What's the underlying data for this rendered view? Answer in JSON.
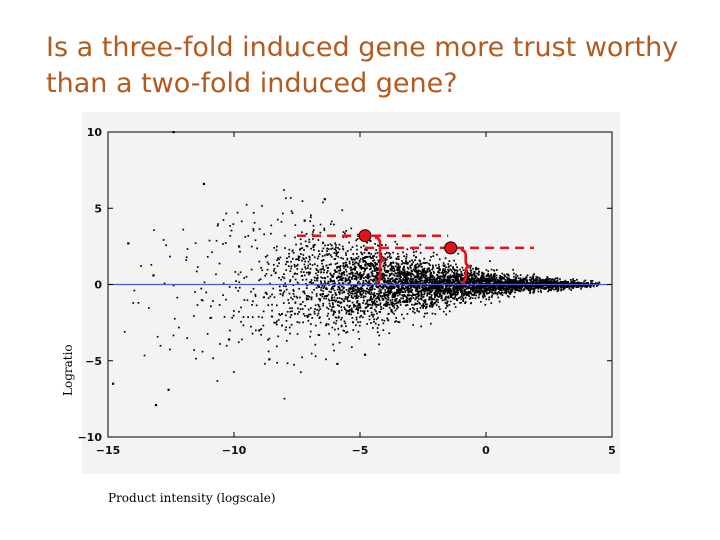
{
  "slide": {
    "title": "Is a three-fold induced gene more trust worthy than a two-fold induced gene?"
  },
  "colors": {
    "title": "#b35a1f",
    "points": "#000000",
    "zero_line": "#4a5fd6",
    "annotation": "#e0151b",
    "panel_background": "#f3f3f3"
  },
  "chart_data": {
    "type": "scatter",
    "title": "",
    "xlabel": "Product intensity (logscale)",
    "ylabel": "Logratio",
    "xlim": [
      -15,
      5
    ],
    "ylim": [
      -10,
      10
    ],
    "xticks": [
      {
        "value": -15,
        "label": "−15"
      },
      {
        "value": -10,
        "label": "−10"
      },
      {
        "value": -5,
        "label": "−5"
      },
      {
        "value": 0,
        "label": "0"
      },
      {
        "value": 5,
        "label": "5"
      }
    ],
    "yticks": [
      {
        "value": 10,
        "label": "10"
      },
      {
        "value": 5,
        "label": "5"
      },
      {
        "value": 0,
        "label": "0"
      },
      {
        "value": -5,
        "label": "−5"
      },
      {
        "value": -10,
        "label": "−10"
      }
    ],
    "grid": false,
    "reference_line": {
      "y": 0,
      "color": "#4a5fd6"
    },
    "description": "MA-style scatter of several thousand genes; spread of log ratio shrinks as intensity increases (funnel shape).",
    "spread_envelope": [
      {
        "x": -14.5,
        "sd": 3.0
      },
      {
        "x": -12.0,
        "sd": 2.8
      },
      {
        "x": -9.0,
        "sd": 2.4
      },
      {
        "x": -7.0,
        "sd": 1.9
      },
      {
        "x": -5.0,
        "sd": 1.35
      },
      {
        "x": -3.0,
        "sd": 0.9
      },
      {
        "x": -1.0,
        "sd": 0.55
      },
      {
        "x": 1.0,
        "sd": 0.3
      },
      {
        "x": 3.0,
        "sd": 0.15
      },
      {
        "x": 4.4,
        "sd": 0.08
      }
    ],
    "density_envelope": [
      {
        "x": -14.5,
        "count": 4
      },
      {
        "x": -12.0,
        "count": 15
      },
      {
        "x": -9.0,
        "count": 60
      },
      {
        "x": -7.0,
        "count": 220
      },
      {
        "x": -5.0,
        "count": 480
      },
      {
        "x": -3.0,
        "count": 560
      },
      {
        "x": -1.0,
        "count": 520
      },
      {
        "x": 1.0,
        "count": 420
      },
      {
        "x": 3.0,
        "count": 260
      },
      {
        "x": 4.4,
        "count": 60
      }
    ],
    "outliers": [
      {
        "x": -12.4,
        "y": 10.0
      },
      {
        "x": -11.2,
        "y": 6.6
      },
      {
        "x": -14.2,
        "y": 2.7
      },
      {
        "x": -14.8,
        "y": -6.5
      },
      {
        "x": -12.6,
        "y": -6.9
      },
      {
        "x": -13.1,
        "y": -7.9
      },
      {
        "x": -13.2,
        "y": 0.6
      },
      {
        "x": -9.8,
        "y": 2.5
      },
      {
        "x": -10.2,
        "y": -3.6
      },
      {
        "x": -8.6,
        "y": -4.9
      },
      {
        "x": -9.0,
        "y": -3.0
      },
      {
        "x": -6.4,
        "y": 5.6
      },
      {
        "x": -7.2,
        "y": 4.2
      },
      {
        "x": -5.9,
        "y": -5.2
      },
      {
        "x": -4.8,
        "y": -4.6
      }
    ],
    "highlighted_genes": [
      {
        "x": -4.8,
        "y": 3.2,
        "dash_from_x": -7.5,
        "dash_to_x": -1.5
      },
      {
        "x": -1.4,
        "y": 2.4,
        "dash_from_x": -4.8,
        "dash_to_x": 1.9
      }
    ]
  }
}
